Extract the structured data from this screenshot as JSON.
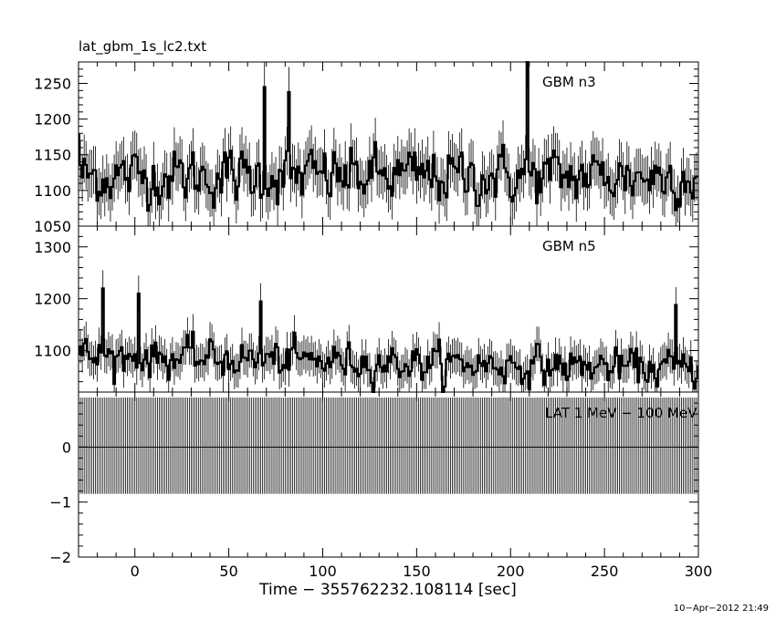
{
  "chart_data": {
    "type": "line",
    "title": "lat_gbm_1s_lc2.txt",
    "xlabel": "Time − 355762232.108114 [sec]",
    "timestamp": "10−Apr−2012 21:49",
    "xlim": [
      -30,
      300
    ],
    "x_ticks": [
      0,
      50,
      100,
      150,
      200,
      250,
      300
    ],
    "panels": [
      {
        "name": "GBM n3",
        "ylim": [
          1050,
          1280
        ],
        "y_ticks": [
          1050,
          1100,
          1150,
          1200,
          1250
        ],
        "mean": 1120,
        "noise_sd": 28,
        "trend": 0,
        "peaks": [
          {
            "x": 209,
            "y": 1280
          },
          {
            "x": 69,
            "y": 1245
          },
          {
            "x": 82,
            "y": 1238
          },
          {
            "x": -30,
            "y": 1178
          }
        ]
      },
      {
        "name": "GBM n5",
        "ylim": [
          1020,
          1340
        ],
        "y_ticks": [
          1100,
          1200,
          1300
        ],
        "mean": 1090,
        "noise_sd": 25,
        "trend": -25,
        "peaks": [
          {
            "x": -17,
            "y": 1220
          },
          {
            "x": 2,
            "y": 1210
          },
          {
            "x": 288,
            "y": 1188
          },
          {
            "x": 67,
            "y": 1195
          }
        ]
      },
      {
        "name": "LAT 1 MeV − 100 MeV",
        "ylim": [
          -2,
          1
        ],
        "y_ticks": [
          -2,
          -1,
          0
        ],
        "band_low": -0.85,
        "band_high": 0.9,
        "value": 0
      }
    ]
  }
}
